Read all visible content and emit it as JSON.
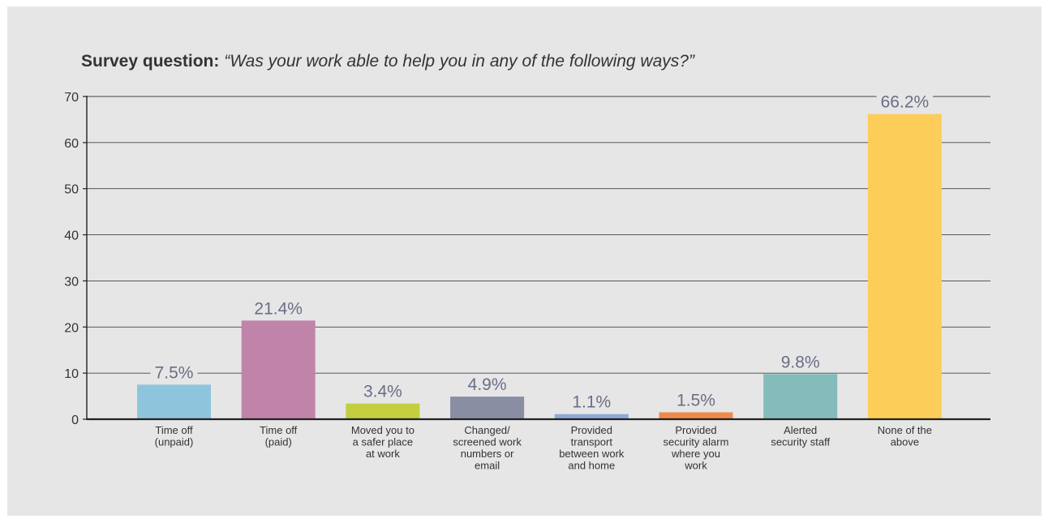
{
  "title": {
    "lead": "Survey question:",
    "question": "“Was your work able to help you in any of the following ways?”"
  },
  "chart_data": {
    "type": "bar",
    "title": "Survey question: “Was your work able to help you in any of the following ways?”",
    "xlabel": "",
    "ylabel": "",
    "ylim": [
      0,
      70
    ],
    "yticks": [
      "0",
      "10",
      "20",
      "30",
      "40",
      "50",
      "60",
      "70"
    ],
    "grid": true,
    "categories": [
      [
        "Time off",
        "(unpaid)"
      ],
      [
        "Time off",
        "(paid)"
      ],
      [
        "Moved you to",
        "a safer place",
        "at work"
      ],
      [
        "Changed/",
        "screened work",
        "numbers or",
        "email"
      ],
      [
        "Provided",
        "transport",
        "between work",
        "and home"
      ],
      [
        "Provided",
        "security alarm",
        "where you",
        "work"
      ],
      [
        "Alerted",
        "security staff"
      ],
      [
        "None of the",
        "above"
      ]
    ],
    "values": [
      7.5,
      21.4,
      3.4,
      4.9,
      1.1,
      1.5,
      9.8,
      66.2
    ],
    "labels": [
      "7.5%",
      "21.4%",
      "3.4%",
      "4.9%",
      "1.1%",
      "1.5%",
      "9.8%",
      "66.2%"
    ],
    "colors": [
      "#8ec5dd",
      "#c084ab",
      "#c3cf3f",
      "#8a8ea3",
      "#8ca9d8",
      "#f08a4b",
      "#84bcbc",
      "#fdcd5a"
    ],
    "label_color": "#6a6e86",
    "background": "#e6e6e6"
  }
}
